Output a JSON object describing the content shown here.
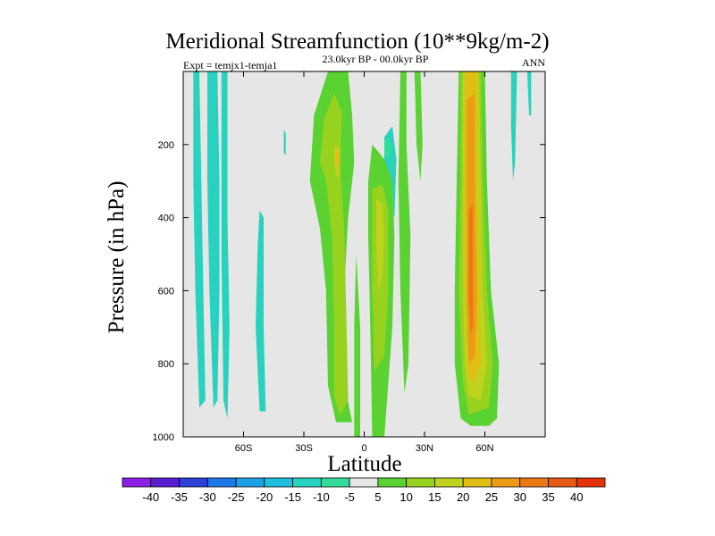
{
  "chart_data": {
    "type": "contour",
    "title": "Meridional Streamfunction (10**9kg/m-2)",
    "left_subtitle": "Expt = temjx1-temja1",
    "center_subtitle": "23.0kyr BP - 00.0kyr BP",
    "right_subtitle": "ANN",
    "xlabel": "Latitude",
    "ylabel": "Pressure (in hPa)",
    "xlim": [
      -90,
      90
    ],
    "ylim": [
      1000,
      0
    ],
    "x_ticks": [
      {
        "value": -60,
        "label": "60S"
      },
      {
        "value": -30,
        "label": "30S"
      },
      {
        "value": 0,
        "label": "0"
      },
      {
        "value": 30,
        "label": "30N"
      },
      {
        "value": 60,
        "label": "60N"
      }
    ],
    "y_ticks": [
      {
        "value": 200,
        "label": "200"
      },
      {
        "value": 400,
        "label": "400"
      },
      {
        "value": 600,
        "label": "600"
      },
      {
        "value": 800,
        "label": "800"
      },
      {
        "value": 1000,
        "label": "1000"
      }
    ],
    "background_color": "#e6e6e6",
    "colorbar": {
      "levels": [
        -40,
        -35,
        -30,
        -25,
        -20,
        -15,
        -10,
        -5,
        5,
        10,
        15,
        20,
        25,
        30,
        35,
        40
      ],
      "colors": [
        "#8c1ee6",
        "#5a1ed2",
        "#2d41d7",
        "#1e78e6",
        "#1ea0e6",
        "#1ebede",
        "#28d2be",
        "#32dc9b",
        "#e6e6e6",
        "#5ad232",
        "#96d21e",
        "#bed21e",
        "#e1be14",
        "#eb9b14",
        "#eb7814",
        "#e65a14",
        "#e6320a"
      ]
    },
    "contour_regions": [
      {
        "bin": 6,
        "points": [
          [
            -85,
            0
          ],
          [
            -82,
            0
          ],
          [
            -81,
            300
          ],
          [
            -80,
            600
          ],
          [
            -79,
            900
          ],
          [
            -82,
            920
          ],
          [
            -84,
            600
          ],
          [
            -85,
            300
          ]
        ]
      },
      {
        "bin": 6,
        "points": [
          [
            -78,
            0
          ],
          [
            -73,
            0
          ],
          [
            -72,
            300
          ],
          [
            -72,
            600
          ],
          [
            -73,
            900
          ],
          [
            -75,
            920
          ],
          [
            -77,
            600
          ],
          [
            -78,
            300
          ]
        ]
      },
      {
        "bin": 6,
        "points": [
          [
            -71,
            0
          ],
          [
            -68,
            0
          ],
          [
            -68,
            400
          ],
          [
            -67,
            700
          ],
          [
            -68,
            950
          ],
          [
            -70,
            900
          ],
          [
            -71,
            500
          ]
        ]
      },
      {
        "bin": 6,
        "points": [
          [
            -52,
            380
          ],
          [
            -50,
            400
          ],
          [
            -50,
            700
          ],
          [
            -49,
            930
          ],
          [
            -52,
            930
          ],
          [
            -54,
            700
          ],
          [
            -53,
            480
          ]
        ]
      },
      {
        "bin": 6,
        "points": [
          [
            -40,
            160
          ],
          [
            -39,
            170
          ],
          [
            -39,
            230
          ],
          [
            -40,
            220
          ]
        ]
      },
      {
        "bin": 6,
        "points": [
          [
            10,
            180
          ],
          [
            14,
            150
          ],
          [
            16,
            240
          ],
          [
            15,
            400
          ],
          [
            12,
            320
          ],
          [
            10,
            250
          ]
        ]
      },
      {
        "bin": 6,
        "points": [
          [
            73,
            0
          ],
          [
            76,
            0
          ],
          [
            75,
            250
          ],
          [
            74,
            300
          ],
          [
            73,
            150
          ]
        ]
      },
      {
        "bin": 6,
        "points": [
          [
            81,
            0
          ],
          [
            83,
            0
          ],
          [
            83,
            120
          ],
          [
            82,
            120
          ]
        ]
      },
      {
        "bin": 7,
        "points": [
          [
            10,
            190
          ],
          [
            12,
            180
          ],
          [
            14,
            210
          ],
          [
            12,
            240
          ],
          [
            10,
            230
          ]
        ]
      },
      {
        "bin": 9,
        "points": [
          [
            -18,
            0
          ],
          [
            -8,
            0
          ],
          [
            -6,
            120
          ],
          [
            -5,
            250
          ],
          [
            -8,
            400
          ],
          [
            -10,
            600
          ],
          [
            -10,
            850
          ],
          [
            -6,
            960
          ],
          [
            -14,
            960
          ],
          [
            -18,
            860
          ],
          [
            -19,
            600
          ],
          [
            -22,
            430
          ],
          [
            -27,
            300
          ],
          [
            -25,
            120
          ]
        ]
      },
      {
        "bin": 9,
        "points": [
          [
            -4,
            500
          ],
          [
            -2,
            700
          ],
          [
            -2,
            1000
          ],
          [
            -5,
            1000
          ],
          [
            -5,
            700
          ]
        ]
      },
      {
        "bin": 9,
        "points": [
          [
            4,
            200
          ],
          [
            10,
            240
          ],
          [
            14,
            300
          ],
          [
            15,
            450
          ],
          [
            14,
            700
          ],
          [
            12,
            850
          ],
          [
            10,
            1000
          ],
          [
            4,
            1000
          ],
          [
            3,
            700
          ],
          [
            2,
            450
          ],
          [
            2,
            300
          ]
        ]
      },
      {
        "bin": 9,
        "points": [
          [
            18,
            0
          ],
          [
            21,
            0
          ],
          [
            21,
            200
          ],
          [
            23,
            450
          ],
          [
            22,
            800
          ],
          [
            20,
            880
          ],
          [
            18,
            600
          ],
          [
            17,
            300
          ]
        ]
      },
      {
        "bin": 9,
        "points": [
          [
            25,
            0
          ],
          [
            28,
            0
          ],
          [
            29,
            200
          ],
          [
            28,
            300
          ],
          [
            26,
            200
          ]
        ]
      },
      {
        "bin": 9,
        "points": [
          [
            47,
            0
          ],
          [
            60,
            0
          ],
          [
            61,
            300
          ],
          [
            63,
            600
          ],
          [
            67,
            800
          ],
          [
            66,
            950
          ],
          [
            62,
            970
          ],
          [
            53,
            970
          ],
          [
            48,
            950
          ],
          [
            45,
            800
          ],
          [
            45,
            600
          ],
          [
            46,
            300
          ]
        ]
      },
      {
        "bin": 10,
        "points": [
          [
            -20,
            130
          ],
          [
            -15,
            60
          ],
          [
            -11,
            110
          ],
          [
            -12,
            260
          ],
          [
            -10,
            420
          ],
          [
            -9,
            650
          ],
          [
            -8,
            900
          ],
          [
            -12,
            940
          ],
          [
            -15,
            890
          ],
          [
            -15,
            700
          ],
          [
            -16,
            450
          ],
          [
            -19,
            300
          ],
          [
            -22,
            250
          ]
        ]
      },
      {
        "bin": 10,
        "points": [
          [
            4,
            320
          ],
          [
            9,
            310
          ],
          [
            12,
            380
          ],
          [
            12,
            600
          ],
          [
            10,
            780
          ],
          [
            5,
            820
          ],
          [
            4,
            600
          ]
        ]
      },
      {
        "bin": 10,
        "points": [
          [
            48,
            0
          ],
          [
            58,
            0
          ],
          [
            59,
            300
          ],
          [
            61,
            600
          ],
          [
            64,
            800
          ],
          [
            62,
            920
          ],
          [
            52,
            940
          ],
          [
            49,
            850
          ],
          [
            47,
            600
          ],
          [
            48,
            300
          ]
        ]
      },
      {
        "bin": 11,
        "points": [
          [
            -15,
            200
          ],
          [
            -12,
            210
          ],
          [
            -12,
            280
          ],
          [
            -14,
            290
          ],
          [
            -15,
            250
          ]
        ]
      },
      {
        "bin": 11,
        "points": [
          [
            6,
            350
          ],
          [
            9,
            360
          ],
          [
            10,
            450
          ],
          [
            9,
            560
          ],
          [
            7,
            600
          ],
          [
            6,
            480
          ]
        ]
      },
      {
        "bin": 11,
        "points": [
          [
            49,
            0
          ],
          [
            57,
            0
          ],
          [
            58,
            300
          ],
          [
            59,
            600
          ],
          [
            61,
            800
          ],
          [
            58,
            900
          ],
          [
            52,
            890
          ],
          [
            50,
            800
          ],
          [
            49,
            600
          ],
          [
            49,
            300
          ]
        ]
      },
      {
        "bin": 12,
        "points": [
          [
            -14,
            215
          ],
          [
            -12,
            225
          ],
          [
            -12,
            265
          ],
          [
            -13,
            270
          ],
          [
            -14,
            245
          ]
        ]
      },
      {
        "bin": 12,
        "points": [
          [
            50,
            0
          ],
          [
            56,
            0
          ],
          [
            56,
            300
          ],
          [
            57,
            600
          ],
          [
            58,
            800
          ],
          [
            55,
            850
          ],
          [
            52,
            840
          ],
          [
            51,
            700
          ],
          [
            50,
            500
          ]
        ]
      },
      {
        "bin": 13,
        "points": [
          [
            51,
            80
          ],
          [
            55,
            60
          ],
          [
            55,
            300
          ],
          [
            56,
            600
          ],
          [
            55,
            780
          ],
          [
            52,
            800
          ],
          [
            51,
            650
          ],
          [
            51,
            400
          ]
        ]
      },
      {
        "bin": 14,
        "points": [
          [
            52,
            380
          ],
          [
            54,
            360
          ],
          [
            54,
            500
          ],
          [
            54,
            700
          ],
          [
            53,
            720
          ],
          [
            52,
            620
          ],
          [
            52,
            500
          ]
        ]
      }
    ]
  }
}
